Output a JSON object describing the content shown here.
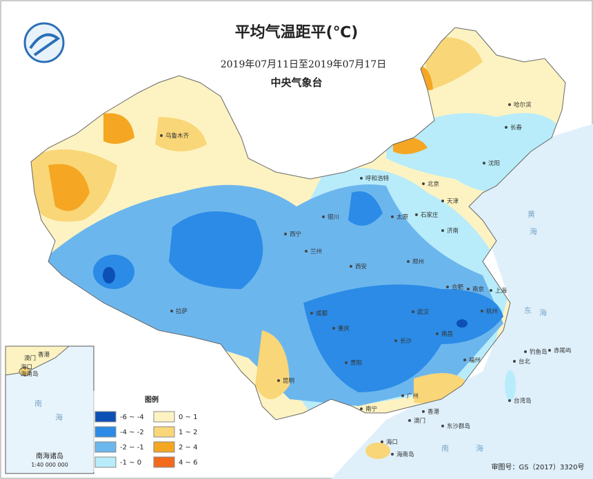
{
  "header": {
    "title": "平均气温距平(℃)",
    "period": "2019年07月11日至2019年07月17日",
    "agency": "中央气象台"
  },
  "legend": {
    "title": "图例",
    "items": [
      {
        "label": "-6 ~ -4",
        "color": "#0c4fb5"
      },
      {
        "label": "0 ~ 1",
        "color": "#fdf3c2"
      },
      {
        "label": "-4 ~ -2",
        "color": "#2b8be6"
      },
      {
        "label": "1 ~ 2",
        "color": "#f9d677"
      },
      {
        "label": "-2 ~ -1",
        "color": "#6cb6ee"
      },
      {
        "label": "2 ~ 4",
        "color": "#f5a623"
      },
      {
        "label": "-1 ~ 0",
        "color": "#b8ecfa"
      },
      {
        "label": "4 ~ 6",
        "color": "#f26b1d"
      }
    ]
  },
  "places": [
    "乌鲁木齐",
    "哈尔滨",
    "长春",
    "沈阳",
    "呼和浩特",
    "北京",
    "天津",
    "石家庄",
    "太原",
    "银川",
    "济南",
    "西宁",
    "兰州",
    "西安",
    "郑州",
    "合肥",
    "南京",
    "上海",
    "杭州",
    "武汉",
    "成都",
    "重庆",
    "长沙",
    "南昌",
    "拉萨",
    "贵阳",
    "昆明",
    "南宁",
    "广州",
    "香港",
    "澳门",
    "福州",
    "台北",
    "海口",
    "海南岛",
    "台湾岛",
    "东沙群岛",
    "钓鱼岛",
    "赤尾屿"
  ],
  "seas": [
    "黄",
    "海",
    "东",
    "海",
    "南",
    "海"
  ],
  "inset": {
    "title": "南海诸岛",
    "scale": "1:40 000 000",
    "places": [
      "澳门",
      "香港",
      "海口",
      "海南岛",
      "南",
      "海"
    ]
  },
  "footer": "审图号：GS（2017）3320号"
}
